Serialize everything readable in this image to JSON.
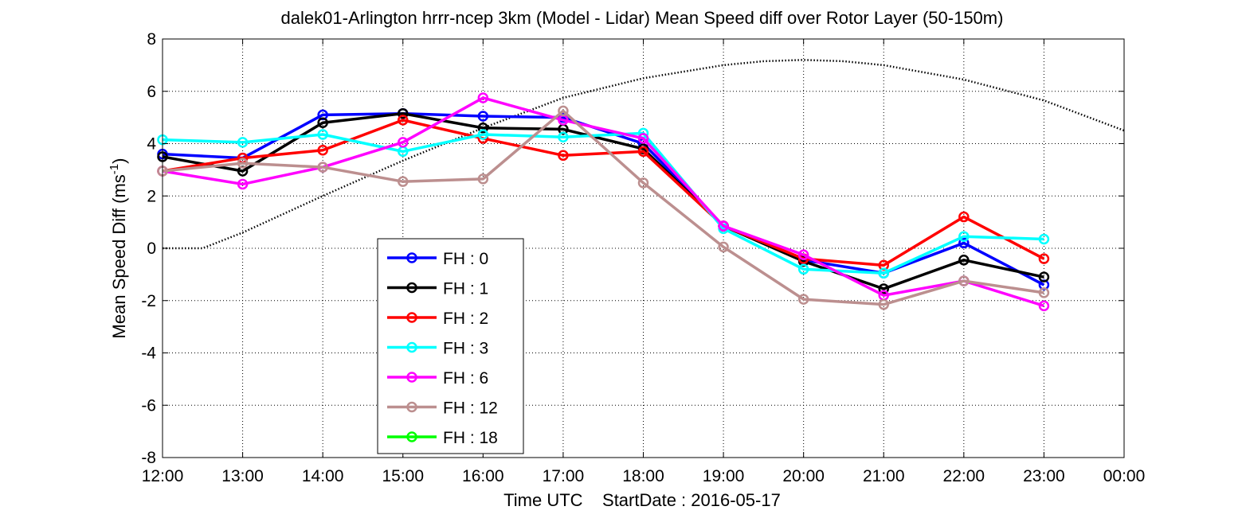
{
  "chart_data": {
    "type": "line",
    "title": "dalek01-Arlington hrrr-ncep 3km (Model - Lidar) Mean Speed diff over Rotor Layer (50-150m)",
    "xlabel": "Time UTC    StartDate : 2016-05-17",
    "ylabel": "Mean Speed Diff (ms",
    "ylabel_sup": "-1",
    "ylabel_end": ")",
    "categories": [
      "12:00",
      "13:00",
      "14:00",
      "15:00",
      "16:00",
      "17:00",
      "18:00",
      "19:00",
      "20:00",
      "21:00",
      "22:00",
      "23:00",
      "00:00"
    ],
    "xlim": [
      12,
      24
    ],
    "ylim": [
      -8,
      8
    ],
    "yticks": [
      -8,
      -6,
      -4,
      -2,
      0,
      2,
      4,
      6,
      8
    ],
    "grid": true,
    "legend_position": "lower-left",
    "series": [
      {
        "name": "FH : 0",
        "color": "#0000ff",
        "x": [
          12,
          13,
          14,
          15,
          16,
          17,
          18,
          19,
          20,
          21,
          22,
          23
        ],
        "values": [
          3.6,
          3.45,
          5.1,
          5.15,
          5.05,
          5.0,
          4.0,
          0.85,
          -0.45,
          -0.95,
          0.2,
          -1.4
        ]
      },
      {
        "name": "FH : 1",
        "color": "#000000",
        "x": [
          12,
          13,
          14,
          15,
          16,
          17,
          18,
          19,
          20,
          21,
          22,
          23
        ],
        "values": [
          3.5,
          2.95,
          4.8,
          5.15,
          4.6,
          4.55,
          3.8,
          0.85,
          -0.5,
          -1.55,
          -0.45,
          -1.1
        ]
      },
      {
        "name": "FH : 2",
        "color": "#ff0000",
        "x": [
          12,
          13,
          14,
          15,
          16,
          17,
          18,
          19,
          20,
          21,
          22,
          23
        ],
        "values": [
          2.95,
          3.45,
          3.75,
          4.9,
          4.2,
          3.55,
          3.7,
          0.85,
          -0.4,
          -0.65,
          1.2,
          -0.4
        ]
      },
      {
        "name": "FH : 3",
        "color": "#00ffff",
        "x": [
          12,
          13,
          14,
          15,
          16,
          17,
          18,
          19,
          20,
          21,
          22,
          23
        ],
        "values": [
          4.15,
          4.05,
          4.35,
          3.7,
          4.35,
          4.25,
          4.4,
          0.75,
          -0.8,
          -0.95,
          0.45,
          0.35
        ]
      },
      {
        "name": "FH : 6",
        "color": "#ff00ff",
        "x": [
          12,
          13,
          14,
          15,
          16,
          17,
          18,
          19,
          20,
          21,
          22,
          23
        ],
        "values": [
          2.95,
          2.45,
          3.1,
          4.05,
          5.75,
          4.9,
          4.2,
          0.85,
          -0.25,
          -1.8,
          -1.25,
          -2.2
        ]
      },
      {
        "name": "FH : 12",
        "color": "#bc8f8f",
        "x": [
          12,
          13,
          14,
          15,
          16,
          17,
          18,
          19,
          20,
          21,
          22,
          23
        ],
        "values": [
          2.95,
          3.25,
          3.1,
          2.55,
          2.65,
          5.25,
          2.5,
          0.05,
          -1.95,
          -2.15,
          -1.25,
          -1.7
        ]
      },
      {
        "name": "FH : 18",
        "color": "#00ff00",
        "x": [],
        "values": []
      }
    ],
    "reference_curve": {
      "style": "dotted",
      "color": "#000000",
      "x": [
        12,
        12.5,
        13,
        14,
        15,
        16,
        17,
        18,
        19,
        19.5,
        20,
        20.5,
        21,
        22,
        23,
        24
      ],
      "values": [
        0,
        0,
        0.6,
        2.0,
        3.35,
        4.6,
        5.75,
        6.5,
        7.0,
        7.15,
        7.2,
        7.15,
        7.0,
        6.45,
        5.65,
        4.5
      ]
    }
  }
}
